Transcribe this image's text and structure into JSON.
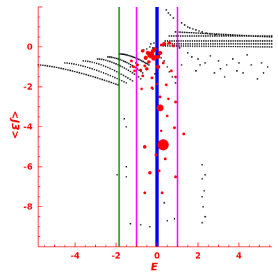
{
  "chart_data": {
    "type": "scatter",
    "title": "",
    "xlabel": "E",
    "ylabel": "<J3>",
    "xlim": [
      -5.8,
      5.6
    ],
    "ylim": [
      -10,
      2
    ],
    "xticks": [
      -4,
      -2,
      0,
      2,
      4
    ],
    "xtick_labels": [
      "-4",
      "-2",
      "0",
      "2",
      "4"
    ],
    "yticks": [
      0,
      -2,
      -4,
      -6,
      -8
    ],
    "ytick_labels": [
      "0",
      "-2",
      "-4",
      "-6",
      "-8"
    ],
    "grid": false,
    "colors": {
      "axis": "#ff0000",
      "black_points": "#000000",
      "red_points": "#ff0000",
      "green_line": "#008000",
      "magenta_lines": "#ff00ff",
      "blue_line": "#0000ff"
    },
    "vertical_lines": [
      {
        "x": -1.85,
        "color": "#008000",
        "width": "thin"
      },
      {
        "x": -1.0,
        "color": "#ff00ff",
        "width": "thin"
      },
      {
        "x": 1.0,
        "color": "#ff00ff",
        "width": "thin"
      },
      {
        "x": 0.0,
        "color": "#0000ff",
        "width": "thick"
      }
    ],
    "black_curves": [
      {
        "x_range": [
          -5.8,
          -1.9
        ],
        "y_start": -0.9,
        "y_end": -1.9,
        "curvature": 1.4
      },
      {
        "x_range": [
          -4.5,
          -1.5
        ],
        "y_start": -0.8,
        "y_end": -1.8,
        "curvature": 1.5
      },
      {
        "x_range": [
          -3.6,
          -1.2
        ],
        "y_start": -0.7,
        "y_end": -1.7,
        "curvature": 1.6
      },
      {
        "x_range": [
          -2.9,
          -0.9
        ],
        "y_start": -0.6,
        "y_end": -1.5,
        "curvature": 1.6
      },
      {
        "x_range": [
          -2.4,
          -0.7
        ],
        "y_start": -0.5,
        "y_end": -1.3,
        "curvature": 1.7
      },
      {
        "x_range": [
          -1.8,
          -0.4
        ],
        "y_start": -0.35,
        "y_end": -0.9,
        "curvature": 1.6
      },
      {
        "x_range": [
          0.3,
          5.6
        ],
        "y_start": 0.05,
        "y_end": 0.0,
        "curvature": 1.0
      },
      {
        "x_range": [
          0.3,
          5.6
        ],
        "y_start": 0.15,
        "y_end": 0.15,
        "curvature": 1.0
      },
      {
        "x_range": [
          0.4,
          5.6
        ],
        "y_start": 0.3,
        "y_end": 0.3,
        "curvature": 1.0
      },
      {
        "x_range": [
          0.6,
          5.6
        ],
        "y_start": 0.55,
        "y_end": 0.55,
        "curvature": 1.0
      },
      {
        "x_range": [
          0.9,
          5.6
        ],
        "y_start": 0.75,
        "y_end": 0.5,
        "curvature": 1.0
      }
    ],
    "black_scatter": [
      [
        0.45,
        1.85
      ],
      [
        0.55,
        1.7
      ],
      [
        0.65,
        1.6
      ],
      [
        0.8,
        1.45
      ],
      [
        1.0,
        1.3
      ],
      [
        1.2,
        1.2
      ],
      [
        1.35,
        1.1
      ],
      [
        1.5,
        1.0
      ],
      [
        1.6,
        0.95
      ],
      [
        1.75,
        0.9
      ],
      [
        1.9,
        0.85
      ],
      [
        2.05,
        0.8
      ],
      [
        2.2,
        0.75
      ],
      [
        2.4,
        0.7
      ],
      [
        2.6,
        0.65
      ],
      [
        2.85,
        0.6
      ],
      [
        -0.2,
        -0.05
      ],
      [
        -0.35,
        0.0
      ],
      [
        -0.5,
        -0.1
      ],
      [
        -0.65,
        -0.15
      ],
      [
        -0.15,
        0.2
      ],
      [
        -0.3,
        0.15
      ],
      [
        0.1,
        -0.4
      ],
      [
        0.2,
        -0.55
      ],
      [
        0.35,
        -0.7
      ],
      [
        0.5,
        -1.0
      ],
      [
        0.6,
        -1.25
      ],
      [
        0.75,
        -1.5
      ],
      [
        0.9,
        -1.8
      ],
      [
        -0.1,
        -1.35
      ],
      [
        -0.8,
        -1.6
      ],
      [
        -0.2,
        -2.1
      ],
      [
        1.5,
        -0.3
      ],
      [
        1.7,
        -0.5
      ],
      [
        2.0,
        -0.6
      ],
      [
        2.1,
        -0.9
      ],
      [
        2.35,
        -0.8
      ],
      [
        2.6,
        -0.45
      ],
      [
        3.0,
        -0.7
      ],
      [
        3.1,
        -1.1
      ],
      [
        3.4,
        -0.9
      ],
      [
        3.7,
        -0.6
      ],
      [
        4.0,
        -0.8
      ],
      [
        4.2,
        -1.3
      ],
      [
        4.6,
        -0.9
      ],
      [
        4.9,
        -1.6
      ],
      [
        5.1,
        -0.8
      ],
      [
        5.4,
        -1.0
      ],
      [
        3.3,
        -1.5
      ],
      [
        2.8,
        -1.3
      ],
      [
        1.9,
        -1.2
      ],
      [
        1.2,
        -0.9
      ],
      [
        4.4,
        -0.4
      ],
      [
        5.2,
        -1.3
      ],
      [
        3.9,
        -1.2
      ],
      [
        -1.6,
        -3.6
      ],
      [
        -1.5,
        -4.0
      ],
      [
        -1.5,
        -6.0
      ],
      [
        -1.5,
        -6.5
      ],
      [
        -1.95,
        -6.4
      ],
      [
        -1.3,
        -8.85
      ],
      [
        -0.8,
        -8.9
      ],
      [
        -0.35,
        -9.0
      ],
      [
        0.35,
        -7.8
      ],
      [
        0.5,
        -8.7
      ],
      [
        0.85,
        -8.6
      ],
      [
        2.2,
        -5.9
      ],
      [
        2.35,
        -6.4
      ],
      [
        2.2,
        -6.6
      ],
      [
        2.3,
        -7.2
      ],
      [
        2.2,
        -7.5
      ],
      [
        2.25,
        -8.0
      ],
      [
        2.35,
        -8.5
      ],
      [
        2.2,
        -8.8
      ],
      [
        -1.3,
        -1.0
      ],
      [
        -1.05,
        -0.8
      ],
      [
        1.1,
        -0.05
      ],
      [
        0.95,
        0.05
      ]
    ],
    "red_points": [
      {
        "x": -0.3,
        "y": -0.4,
        "size": 5
      },
      {
        "x": -0.15,
        "y": -0.55,
        "size": 4
      },
      {
        "x": -0.45,
        "y": -0.3,
        "size": 3
      },
      {
        "x": -0.55,
        "y": -0.55,
        "size": 3
      },
      {
        "x": -0.2,
        "y": -0.2,
        "size": 3
      },
      {
        "x": 0.05,
        "y": -0.5,
        "size": 3
      },
      {
        "x": 0.15,
        "y": -0.3,
        "size": 3
      },
      {
        "x": -0.4,
        "y": -0.75,
        "size": 2.5
      },
      {
        "x": -0.7,
        "y": -0.2,
        "size": 2.5
      },
      {
        "x": -0.1,
        "y": -0.1,
        "size": 2.5
      },
      {
        "x": 0.35,
        "y": 0.15,
        "size": 3
      },
      {
        "x": 0.6,
        "y": 0.2,
        "size": 2.5
      },
      {
        "x": 0.8,
        "y": 0.05,
        "size": 2
      },
      {
        "x": 0.2,
        "y": 0.1,
        "size": 2
      },
      {
        "x": 0.05,
        "y": -1.0,
        "size": 3
      },
      {
        "x": -0.5,
        "y": -1.1,
        "size": 2.5
      },
      {
        "x": -0.95,
        "y": -0.9,
        "size": 2
      },
      {
        "x": -1.15,
        "y": -1.0,
        "size": 2
      },
      {
        "x": -1.25,
        "y": -0.7,
        "size": 2
      },
      {
        "x": -0.8,
        "y": -1.15,
        "size": 2
      },
      {
        "x": -1.1,
        "y": -1.2,
        "size": 1.8
      },
      {
        "x": -0.6,
        "y": -0.95,
        "size": 2
      },
      {
        "x": -0.7,
        "y": -1.45,
        "size": 2
      },
      {
        "x": 0.3,
        "y": -0.8,
        "size": 2
      },
      {
        "x": 0.7,
        "y": -1.2,
        "size": 2
      },
      {
        "x": 0.9,
        "y": -1.5,
        "size": 1.8
      },
      {
        "x": -0.25,
        "y": -1.55,
        "size": 2
      },
      {
        "x": 0.45,
        "y": -1.9,
        "size": 2
      },
      {
        "x": -0.25,
        "y": -2.05,
        "size": 2
      },
      {
        "x": -0.75,
        "y": -2.1,
        "size": 1.8
      },
      {
        "x": 0.15,
        "y": -2.5,
        "size": 2
      },
      {
        "x": 0.55,
        "y": -2.6,
        "size": 1.8
      },
      {
        "x": 0.9,
        "y": -2.75,
        "size": 2
      },
      {
        "x": 0.15,
        "y": -3.05,
        "size": 5
      },
      {
        "x": 0.5,
        "y": -3.45,
        "size": 1.8
      },
      {
        "x": 0.85,
        "y": -4.05,
        "size": 2
      },
      {
        "x": 0.2,
        "y": -4.2,
        "size": 1.8
      },
      {
        "x": 1.3,
        "y": -4.35,
        "size": 2
      },
      {
        "x": 0.3,
        "y": -4.9,
        "size": 8
      },
      {
        "x": -0.6,
        "y": -5.0,
        "size": 2.5
      },
      {
        "x": -0.05,
        "y": -5.4,
        "size": 2
      },
      {
        "x": 0.4,
        "y": -5.6,
        "size": 2
      },
      {
        "x": -0.35,
        "y": -6.3,
        "size": 2.5
      },
      {
        "x": 0.1,
        "y": -6.2,
        "size": 2
      },
      {
        "x": 0.9,
        "y": -6.5,
        "size": 2
      },
      {
        "x": -0.6,
        "y": -7.3,
        "size": 2
      },
      {
        "x": 0.25,
        "y": -7.3,
        "size": 2
      },
      {
        "x": 0.0,
        "y": -1.85,
        "size": 1.5
      }
    ]
  }
}
